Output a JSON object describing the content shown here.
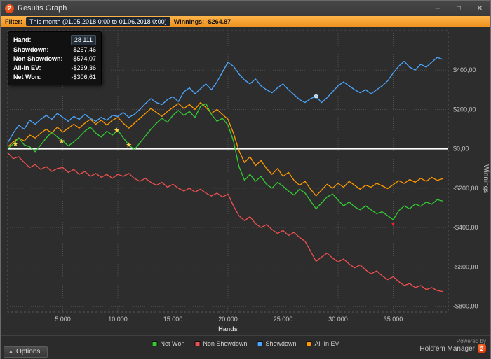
{
  "window": {
    "title": "Results Graph",
    "app_icon_text": "2",
    "controls": {
      "minimize": "─",
      "maximize": "□",
      "close": "✕"
    }
  },
  "filter_bar": {
    "label": "Filter:",
    "range": "This month (01.05.2018 0:00 to 01.06.2018 0:00)",
    "winnings": "Winnings: -$264.87"
  },
  "tooltip": {
    "rows": [
      {
        "label": "Hand:",
        "value": "28 111"
      },
      {
        "label": "Showdown:",
        "value": "$267,46"
      },
      {
        "label": "Non Showdown:",
        "value": "-$574,07"
      },
      {
        "label": "All-In EV:",
        "value": "-$239,36"
      },
      {
        "label": "Net Won:",
        "value": "-$306,61"
      }
    ]
  },
  "chart_data": {
    "type": "line",
    "title": "",
    "xlabel": "Hands",
    "ylabel": "Winnings",
    "x_start": 0,
    "x_step": 500,
    "xlim": [
      0,
      40000
    ],
    "ylim": [
      -830,
      600
    ],
    "x_ticks": [
      5000,
      10000,
      15000,
      20000,
      25000,
      30000,
      35000
    ],
    "x_tick_labels": [
      "5 000",
      "10 000",
      "15 000",
      "20 000",
      "25 000",
      "30 000",
      "35 000"
    ],
    "y_ticks": [
      400,
      200,
      0,
      -200,
      -400,
      -600,
      -800
    ],
    "y_tick_labels": [
      "$400,00",
      "$200,00",
      "$0,00",
      "-$200,00",
      "-$400,00",
      "-$600,00",
      "-$800,00"
    ],
    "grid": true,
    "zero_line": true,
    "series": [
      {
        "name": "Net Won",
        "color": "#33cc33",
        "values": [
          0,
          25,
          55,
          20,
          10,
          -15,
          20,
          55,
          85,
          60,
          40,
          15,
          35,
          60,
          90,
          110,
          80,
          60,
          90,
          70,
          95,
          55,
          20,
          -5,
          30,
          65,
          100,
          130,
          155,
          135,
          170,
          195,
          170,
          190,
          160,
          215,
          230,
          175,
          140,
          155,
          120,
          40,
          -90,
          -160,
          -130,
          -165,
          -140,
          -180,
          -200,
          -170,
          -190,
          -215,
          -235,
          -205,
          -225,
          -265,
          -305,
          -275,
          -245,
          -230,
          -260,
          -290,
          -270,
          -295,
          -310,
          -290,
          -310,
          -330,
          -320,
          -340,
          -360,
          -315,
          -290,
          -305,
          -280,
          -292,
          -270,
          -282,
          -258,
          -265
        ]
      },
      {
        "name": "Non Showdown",
        "color": "#f05050",
        "values": [
          -20,
          -50,
          -40,
          -70,
          -95,
          -80,
          -105,
          -90,
          -115,
          -100,
          -95,
          -120,
          -105,
          -130,
          -115,
          -140,
          -125,
          -145,
          -130,
          -150,
          -130,
          -140,
          -125,
          -150,
          -165,
          -150,
          -170,
          -185,
          -170,
          -195,
          -180,
          -200,
          -215,
          -200,
          -220,
          -205,
          -225,
          -240,
          -225,
          -245,
          -230,
          -290,
          -340,
          -365,
          -345,
          -380,
          -400,
          -385,
          -410,
          -430,
          -415,
          -440,
          -425,
          -450,
          -470,
          -520,
          -572,
          -550,
          -530,
          -555,
          -575,
          -560,
          -585,
          -605,
          -590,
          -615,
          -635,
          -620,
          -645,
          -665,
          -650,
          -675,
          -695,
          -685,
          -705,
          -695,
          -715,
          -705,
          -720,
          -725
        ]
      },
      {
        "name": "Showdown",
        "color": "#4da6ff",
        "values": [
          30,
          80,
          120,
          100,
          145,
          125,
          150,
          170,
          150,
          180,
          160,
          140,
          165,
          150,
          175,
          155,
          140,
          160,
          145,
          170,
          165,
          185,
          160,
          175,
          200,
          230,
          255,
          235,
          225,
          250,
          265,
          240,
          290,
          310,
          280,
          305,
          330,
          300,
          340,
          390,
          440,
          420,
          380,
          350,
          330,
          355,
          320,
          300,
          285,
          310,
          330,
          300,
          275,
          250,
          235,
          255,
          267,
          235,
          260,
          290,
          320,
          340,
          320,
          300,
          285,
          300,
          280,
          300,
          320,
          345,
          385,
          420,
          445,
          415,
          400,
          430,
          415,
          440,
          465,
          455
        ]
      },
      {
        "name": "All-In EV",
        "color": "#ff9900",
        "values": [
          10,
          35,
          55,
          40,
          70,
          55,
          80,
          100,
          80,
          110,
          85,
          105,
          125,
          105,
          130,
          150,
          125,
          145,
          120,
          145,
          160,
          130,
          105,
          130,
          155,
          180,
          205,
          185,
          165,
          190,
          210,
          230,
          205,
          225,
          200,
          235,
          210,
          180,
          200,
          175,
          150,
          80,
          -10,
          -70,
          -40,
          -85,
          -60,
          -100,
          -130,
          -100,
          -140,
          -120,
          -160,
          -185,
          -165,
          -205,
          -239,
          -210,
          -180,
          -200,
          -175,
          -195,
          -165,
          -185,
          -205,
          -185,
          -195,
          -175,
          -188,
          -202,
          -182,
          -162,
          -176,
          -156,
          -170,
          -150,
          -165,
          -145,
          -160,
          -152
        ]
      }
    ],
    "markers": {
      "stars": {
        "series": "Net Won",
        "hands": [
          700,
          4900,
          9900,
          11000
        ],
        "color": "#ffd24a"
      },
      "down_arrow": {
        "series": "Net Won",
        "hands": [
          35000
        ],
        "color": "#ff2222"
      },
      "hover_dot": {
        "series": "Showdown",
        "hands": [
          28000
        ],
        "color": "#9fd4ff"
      }
    },
    "legend_position": "bottom"
  },
  "legend": [
    {
      "label": "Net Won",
      "color": "#33cc33"
    },
    {
      "label": "Non Showdown",
      "color": "#f05050"
    },
    {
      "label": "Showdown",
      "color": "#4da6ff"
    },
    {
      "label": "All-In EV",
      "color": "#ff9900"
    }
  ],
  "footer": {
    "options_label": "Options",
    "powered_by": "Powered by",
    "brand": "Hold'em Manager",
    "brand_logo_text": "2"
  }
}
